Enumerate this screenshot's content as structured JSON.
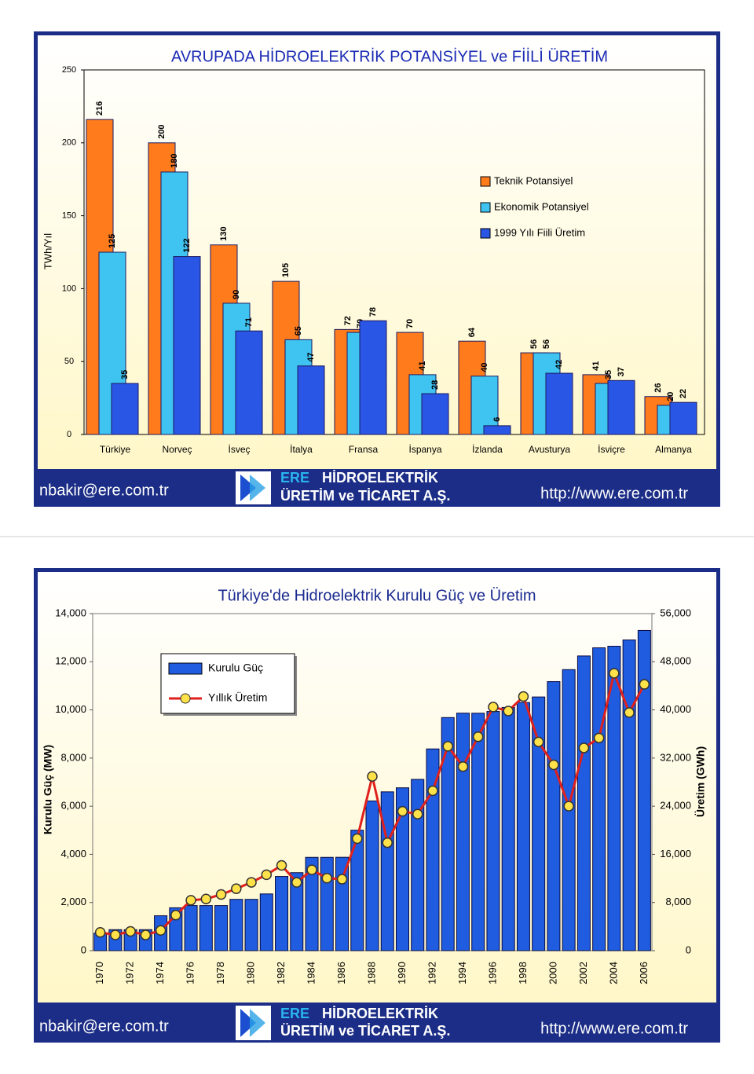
{
  "chart_data": [
    {
      "type": "bar",
      "title": "AVRUPADA HİDROELEKTRİK POTANSİYEL ve FİİLİ ÜRETİM",
      "ylabel": "TWh/Yıl",
      "categories": [
        "Türkiye",
        "Norveç",
        "İsveç",
        "İtalya",
        "Fransa",
        "İspanya",
        "İzlanda",
        "Avusturya",
        "İsviçre",
        "Almanya"
      ],
      "series": [
        {
          "name": "Teknik Potansiyel",
          "color": "#ff7b1c",
          "values": [
            216,
            200,
            130,
            105,
            72,
            70,
            64,
            56,
            41,
            26
          ]
        },
        {
          "name": "Ekonomik Potansiyel",
          "color": "#3fc4f2",
          "values": [
            125,
            180,
            90,
            65,
            70,
            41,
            40,
            56,
            35,
            20
          ]
        },
        {
          "name": "1999 Yılı Fiili Üretim",
          "color": "#2a56e6",
          "values": [
            35,
            122,
            71,
            47,
            78,
            28,
            6,
            42,
            37,
            22
          ]
        }
      ],
      "ylim": [
        0,
        250
      ],
      "yticks": [
        0,
        50,
        100,
        150,
        200,
        250
      ],
      "grid": false,
      "legend": "upper right"
    },
    {
      "type": "combo",
      "title": "Türkiye'de Hidroelektrik Kurulu Güç ve Üretim",
      "ylabel": "Kurulu Güç (MW)",
      "y2label": "Üretim (GWh)",
      "categories": [
        "1970",
        null,
        "1972",
        null,
        "1974",
        null,
        "1976",
        null,
        "1978",
        null,
        "1980",
        null,
        "1982",
        null,
        "1984",
        null,
        "1986",
        null,
        "1988",
        null,
        "1990",
        null,
        "1992",
        null,
        "1994",
        null,
        "1996",
        null,
        "1998",
        null,
        "2000",
        null,
        "2002",
        null,
        "2004",
        null,
        "2006"
      ],
      "series": [
        {
          "name": "Kurulu Güç",
          "color": "#1f5ce0",
          "kind": "bar",
          "values": [
            725,
            872,
            872,
            872,
            1449,
            1780,
            1873,
            1873,
            1873,
            2131,
            2131,
            2356,
            3082,
            3239,
            3875,
            3875,
            3878,
            5003,
            6218,
            6597,
            6764,
            7114,
            8379,
            9682,
            9865,
            9863,
            9935,
            10102,
            10307,
            10537,
            11175,
            11673,
            12241,
            12579,
            12645,
            12906,
            13300
          ]
        },
        {
          "name": "Yıllık Üretim",
          "color": "#e0201c",
          "kind": "line",
          "axis": "y2",
          "values": [
            3033,
            2610,
            3204,
            2603,
            3357,
            5904,
            8375,
            8585,
            9335,
            10289,
            11348,
            12616,
            14167,
            11343,
            13426,
            12045,
            11873,
            18618,
            28950,
            17940,
            23148,
            22683,
            26568,
            33951,
            30586,
            35541,
            40475,
            39816,
            42229,
            34678,
            30879,
            24010,
            33684,
            35330,
            46084,
            39561,
            44244
          ]
        }
      ],
      "ylim": [
        0,
        14000
      ],
      "yticks": [
        0,
        {
          "value": 2000,
          "label": "2,000"
        },
        {
          "value": 4000,
          "label": "4,000"
        },
        {
          "value": 6000,
          "label": "6,000"
        },
        {
          "value": 8000,
          "label": "8,000"
        },
        {
          "value": 10000,
          "label": "10,000"
        },
        {
          "value": 12000,
          "label": "12,000"
        },
        {
          "value": 14000,
          "label": "14,000"
        }
      ],
      "y2lim": [
        0,
        56000
      ],
      "y2ticks": [
        0,
        {
          "value": 8000,
          "label": "8,000"
        },
        {
          "value": 16000,
          "label": "16,000"
        },
        {
          "value": 24000,
          "label": "24,000"
        },
        {
          "value": 32000,
          "label": "32,000"
        },
        {
          "value": 40000,
          "label": "40,000"
        },
        {
          "value": 48000,
          "label": "48,000"
        },
        {
          "value": 56000,
          "label": "56,000"
        }
      ],
      "grid": false,
      "legend": "upper left"
    }
  ],
  "footers": [
    {
      "email": "nbakir@ere.com.tr",
      "brand": "ERE",
      "line1": "HİDROELEKTRİK",
      "line2": "ÜRETİM ve TİCARET A.Ş.",
      "url": "http://www.ere.com.tr"
    },
    {
      "email": "nbakir@ere.com.tr",
      "brand": "ERE",
      "line1": "HİDROELEKTRİK",
      "line2": "ÜRETİM ve TİCARET A.Ş.",
      "url": "http://www.ere.com.tr"
    }
  ]
}
